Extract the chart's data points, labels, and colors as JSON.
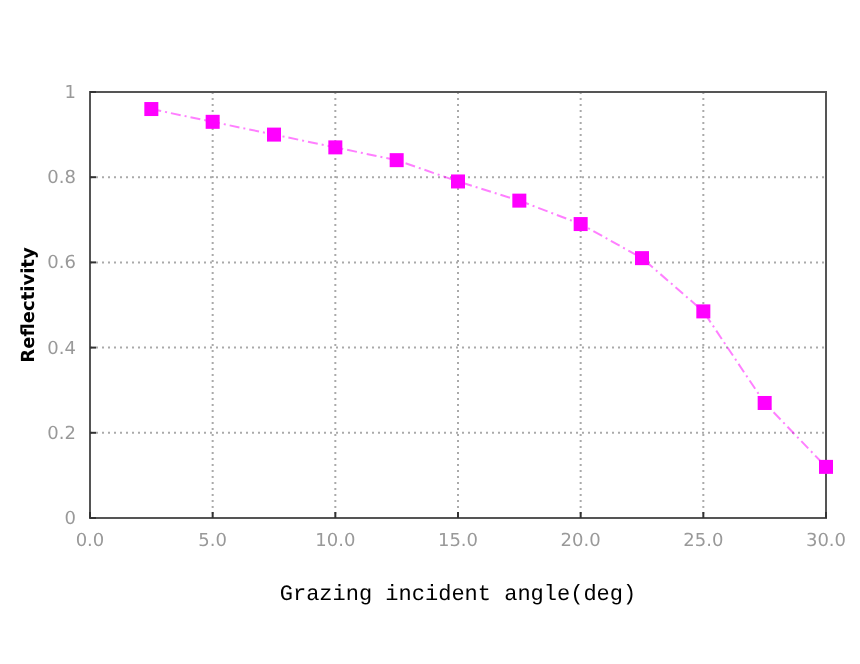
{
  "chart_data": {
    "type": "line",
    "xlabel": "Grazing incident angle(deg)",
    "ylabel": "Reflectivity",
    "x": [
      2.5,
      5,
      7.5,
      10,
      12.5,
      15,
      17.5,
      20,
      22.5,
      25,
      27.5,
      30
    ],
    "series": [
      {
        "color": "#ff00ff",
        "values": [
          0.96,
          0.93,
          0.9,
          0.87,
          0.84,
          0.79,
          0.745,
          0.69,
          0.61,
          0.485,
          0.27,
          0.12
        ]
      }
    ],
    "xlim": [
      0,
      30
    ],
    "xticks": [
      {
        "value": 0,
        "label": "0.0"
      },
      {
        "value": 5,
        "label": "5.0"
      },
      {
        "value": 10,
        "label": "10.0"
      },
      {
        "value": 15,
        "label": "15.0"
      },
      {
        "value": 20,
        "label": "20.0"
      },
      {
        "value": 25,
        "label": "25.0"
      },
      {
        "value": 30,
        "label": "30.0"
      }
    ],
    "ylim": [
      0,
      1
    ],
    "yticks": [
      0,
      0.2,
      0.4,
      0.6,
      0.8,
      1
    ],
    "grid": true,
    "marker": "square",
    "line_style": "dashed"
  }
}
